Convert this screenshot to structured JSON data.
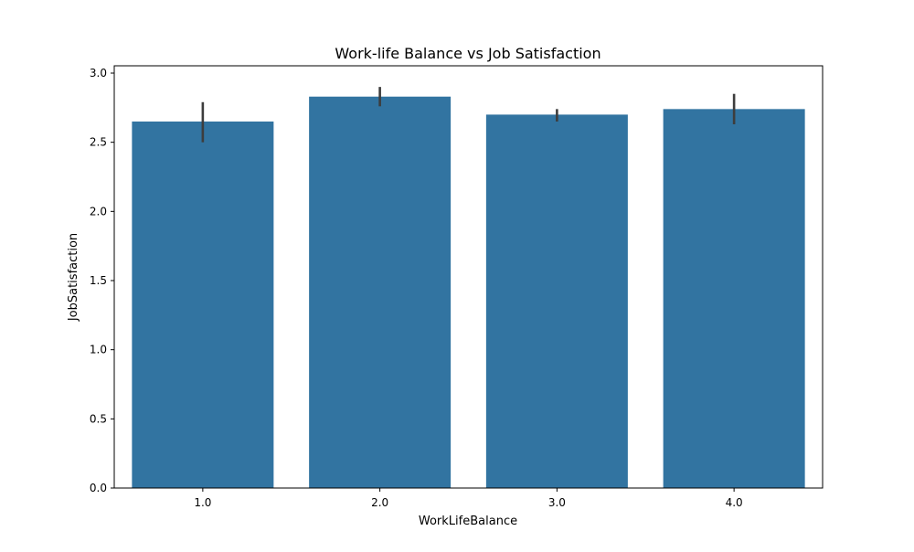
{
  "chart_data": {
    "type": "bar",
    "title": "Work-life Balance vs Job Satisfaction",
    "xlabel": "WorkLifeBalance",
    "ylabel": "JobSatisfaction",
    "categories": [
      "1.0",
      "2.0",
      "3.0",
      "4.0"
    ],
    "values": [
      2.65,
      2.83,
      2.7,
      2.74
    ],
    "error_bars": [
      {
        "low": 2.5,
        "high": 2.79
      },
      {
        "low": 2.76,
        "high": 2.9
      },
      {
        "low": 2.65,
        "high": 2.74
      },
      {
        "low": 2.63,
        "high": 2.85
      }
    ],
    "ylim": [
      0,
      3.0
    ],
    "yticks": [
      "0.0",
      "0.5",
      "1.0",
      "1.5",
      "2.0",
      "2.5",
      "3.0"
    ],
    "grid": false,
    "bar_color": "#3274a1",
    "error_color": "#3d3d3d"
  }
}
